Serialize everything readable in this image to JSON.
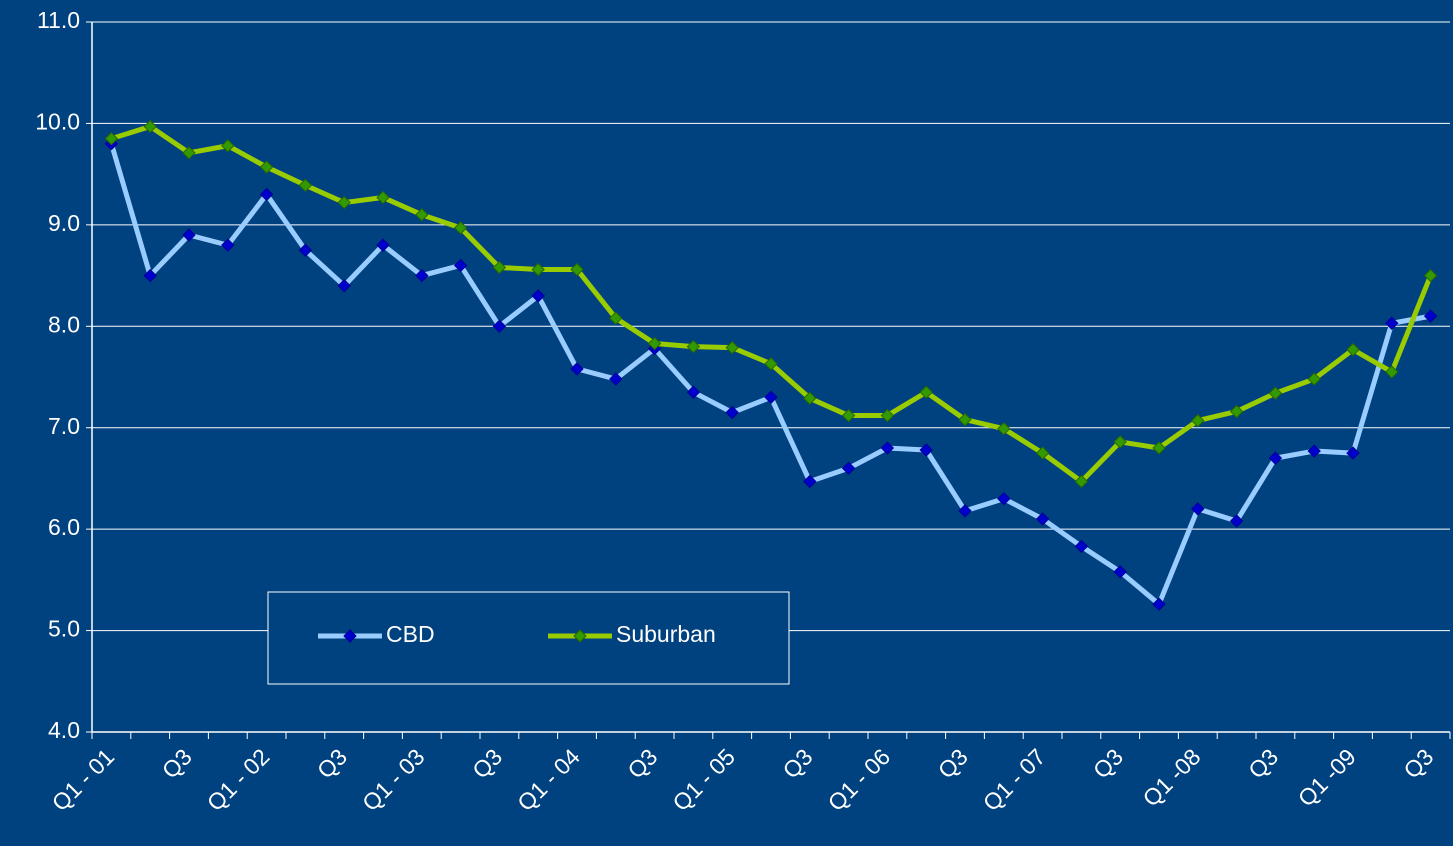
{
  "chart_data": {
    "type": "line",
    "categories": [
      "Q1 - 01",
      null,
      "Q3",
      null,
      "Q1 - 02",
      null,
      "Q3",
      null,
      "Q1 - 03",
      null,
      "Q3",
      null,
      "Q1 - 04",
      null,
      "Q3",
      null,
      "Q1 - 05",
      null,
      "Q3",
      null,
      "Q1 - 06",
      null,
      "Q3",
      null,
      "Q1 - 07",
      null,
      "Q3",
      null,
      "Q1 -08",
      null,
      "Q3",
      null,
      "Q1 -09",
      null,
      "Q3"
    ],
    "series": [
      {
        "name": "CBD",
        "color": "#99ccff",
        "marker_color": "#0000cc",
        "values": [
          9.8,
          8.5,
          8.9,
          8.8,
          9.3,
          8.75,
          8.4,
          8.8,
          8.5,
          8.6,
          8.0,
          8.3,
          7.58,
          7.48,
          7.78,
          7.35,
          7.15,
          7.3,
          6.47,
          6.6,
          6.8,
          6.78,
          6.18,
          6.3,
          6.1,
          5.83,
          5.58,
          5.26,
          6.2,
          6.08,
          6.7,
          6.77,
          6.75,
          8.03,
          8.1
        ]
      },
      {
        "name": "Suburban",
        "color": "#99cc00",
        "marker_color": "#339900",
        "values": [
          9.85,
          9.97,
          9.71,
          9.78,
          9.57,
          9.39,
          9.22,
          9.27,
          9.1,
          8.97,
          8.58,
          8.56,
          8.56,
          8.08,
          7.83,
          7.8,
          7.79,
          7.63,
          7.29,
          7.12,
          7.12,
          7.35,
          7.08,
          6.99,
          6.75,
          6.47,
          6.86,
          6.8,
          7.07,
          7.16,
          7.34,
          7.48,
          7.77,
          7.55,
          8.5
        ]
      }
    ],
    "ylim": [
      4,
      11
    ],
    "yticks": [
      {
        "value": 4,
        "label": "4.0"
      },
      {
        "value": 5,
        "label": "5.0"
      },
      {
        "value": 6,
        "label": "6.0"
      },
      {
        "value": 7,
        "label": "7.0"
      },
      {
        "value": 8,
        "label": "8.0"
      },
      {
        "value": 9,
        "label": "9.0"
      },
      {
        "value": 10,
        "label": "10.0"
      },
      {
        "value": 11,
        "label": "11.0"
      }
    ],
    "grid": true,
    "legend": "lower left"
  }
}
